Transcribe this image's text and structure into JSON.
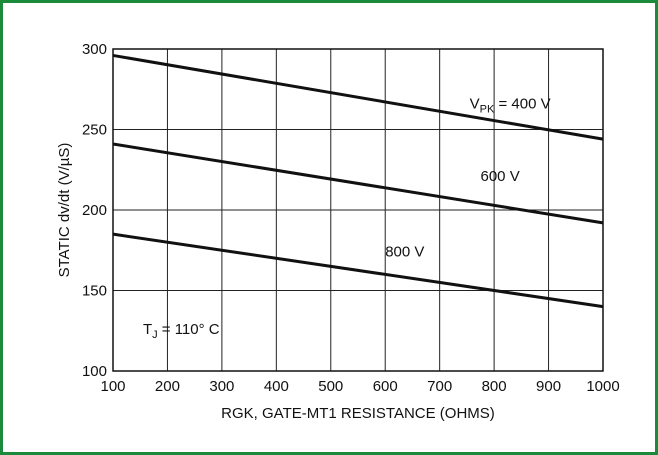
{
  "chart_data": {
    "type": "line",
    "title": "",
    "xlabel": "RGK, GATE-MT1 RESISTANCE (OHMS)",
    "ylabel": "STATIC dv/dt (V/µS)",
    "xlim": [
      100,
      1000
    ],
    "ylim": [
      100,
      300
    ],
    "x_ticks": [
      100,
      200,
      300,
      400,
      500,
      600,
      700,
      800,
      900,
      1000
    ],
    "y_ticks": [
      100,
      150,
      200,
      250,
      300
    ],
    "grid": true,
    "series": [
      {
        "name": "V_PK = 400 V",
        "x": [
          100,
          1000
        ],
        "y": [
          296,
          244
        ]
      },
      {
        "name": "600 V",
        "x": [
          100,
          1000
        ],
        "y": [
          241,
          192
        ]
      },
      {
        "name": "800 V",
        "x": [
          100,
          1000
        ],
        "y": [
          185,
          140
        ]
      }
    ],
    "series_labels": [
      {
        "main": "V",
        "sub": "PK",
        "rest": " = 400 V",
        "at_x": 755,
        "at_y": 263
      },
      {
        "main": "600 V",
        "sub": "",
        "rest": "",
        "at_x": 775,
        "at_y": 218
      },
      {
        "main": "800 V",
        "sub": "",
        "rest": "",
        "at_x": 600,
        "at_y": 171
      }
    ],
    "annotation": {
      "main": "T",
      "sub": "J",
      "rest": " = 110° C",
      "at_x": 155,
      "at_y": 123
    }
  }
}
